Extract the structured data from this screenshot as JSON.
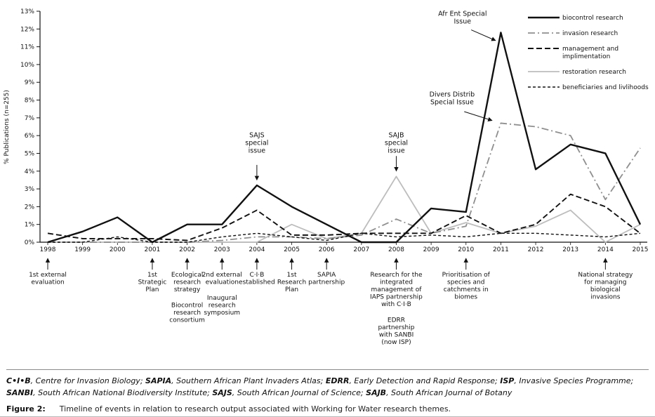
{
  "chart_data": {
    "type": "line",
    "title": "",
    "ylabel": "% Publications (n=255)",
    "ylim": [
      0,
      13
    ],
    "ytick_step": 1,
    "ytick_suffix": "%",
    "grid": false,
    "legend_position": "top-right",
    "categories": [
      1998,
      1999,
      2000,
      2001,
      2002,
      2003,
      2004,
      2005,
      2006,
      2007,
      2008,
      2009,
      2010,
      2011,
      2012,
      2013,
      2014,
      2015
    ],
    "series": [
      {
        "name": "biocontrol research",
        "style": "solid-black-thick",
        "values": [
          0,
          0.6,
          1.4,
          0,
          1.0,
          1.0,
          3.2,
          2.0,
          1.0,
          0,
          0,
          1.9,
          1.7,
          11.8,
          4.1,
          5.5,
          5.0,
          1.0
        ]
      },
      {
        "name": "invasion research",
        "style": "dashdot-gray",
        "values": [
          0,
          0,
          0,
          0,
          0,
          0.1,
          0.3,
          0.3,
          0.2,
          0.4,
          1.3,
          0.5,
          0.9,
          6.7,
          6.5,
          6.0,
          2.4,
          5.3
        ]
      },
      {
        "name": "management and implimentation",
        "style": "dashed-black",
        "values": [
          0.5,
          0.2,
          0.2,
          0.2,
          0.1,
          0.8,
          1.8,
          0.4,
          0.4,
          0.5,
          0.5,
          0.5,
          1.5,
          0.5,
          1.0,
          2.7,
          2.0,
          0.5
        ]
      },
      {
        "name": "restoration research",
        "style": "solid-gray",
        "values": [
          0,
          0,
          0,
          0,
          0,
          0,
          0,
          1.0,
          0.2,
          0.5,
          3.7,
          0.5,
          1.1,
          0.5,
          0.9,
          1.8,
          0,
          1.0
        ]
      },
      {
        "name": "beneficiaries and livlihoods",
        "style": "dotted-black",
        "values": [
          0,
          0,
          0.3,
          0,
          0,
          0.3,
          0.5,
          0.3,
          0.1,
          0.5,
          0.3,
          0.4,
          0.3,
          0.5,
          0.5,
          0.4,
          0.3,
          0.5
        ]
      }
    ],
    "legend": [
      {
        "lines": [
          "biocontrol research"
        ],
        "style": "solid-black-thick"
      },
      {
        "lines": [
          "invasion research"
        ],
        "style": "dashdot-gray"
      },
      {
        "lines": [
          "management and",
          "implimentation"
        ],
        "style": "dashed-black"
      },
      {
        "lines": [
          "restoration research"
        ],
        "style": "solid-gray"
      },
      {
        "lines": [
          "beneficiaries and livlihoods"
        ],
        "style": "dotted-black"
      }
    ],
    "annotations": [
      {
        "lines": [
          "SAJS",
          "special",
          "issue"
        ],
        "tx": 2004,
        "ty": 5.9,
        "sx": 2004,
        "sy": 4.35,
        "ax": 2004,
        "ay": 3.5
      },
      {
        "lines": [
          "SAJB",
          "special",
          "issue"
        ],
        "tx": 2008,
        "ty": 5.9,
        "sx": 2008,
        "sy": 4.85,
        "ax": 2008,
        "ay": 4.0
      },
      {
        "lines": [
          "Afr Ent Special",
          "Issue"
        ],
        "tx": 2009.9,
        "ty": 12.75,
        "sx": 2010.15,
        "sy": 11.95,
        "ax": 2010.85,
        "ay": 11.35
      },
      {
        "lines": [
          "Divers Distrib",
          "Special Issue"
        ],
        "tx": 2009.6,
        "ty": 8.2,
        "sx": 2009.95,
        "sy": 7.35,
        "ax": 2010.75,
        "ay": 6.85
      }
    ],
    "timeline_events": [
      {
        "year": 1998,
        "blocks": [
          [
            "1st external",
            "evaluation"
          ]
        ]
      },
      {
        "year": 2001,
        "blocks": [
          [
            "1st",
            "Strategic",
            "Plan"
          ]
        ]
      },
      {
        "year": 2002,
        "blocks": [
          [
            "Ecological",
            "research",
            "strategy"
          ],
          [
            "Biocontrol",
            "research",
            "consortium"
          ]
        ]
      },
      {
        "year": 2003,
        "blocks": [
          [
            "2nd external",
            "evaluation"
          ],
          [
            "Inaugural",
            "research",
            "symposium"
          ]
        ]
      },
      {
        "year": 2004,
        "blocks": [
          [
            "C·I·B",
            "established"
          ]
        ]
      },
      {
        "year": 2005,
        "blocks": [
          [
            "1st",
            "Research",
            "Plan"
          ]
        ]
      },
      {
        "year": 2006,
        "blocks": [
          [
            "SAPIA",
            "partnership"
          ]
        ]
      },
      {
        "year": 2008,
        "blocks": [
          [
            "Research for the",
            "integrated",
            "management of",
            "IAPS partnership",
            "with C·I·B"
          ],
          [
            "EDRR",
            "partnership",
            "with SANBI",
            "(now ISP)"
          ]
        ]
      },
      {
        "year": 2010,
        "blocks": [
          [
            "Prioritisation of",
            "species and",
            "catchments in",
            "biomes"
          ]
        ]
      },
      {
        "year": 2014,
        "blocks": [
          [
            "National strategy",
            "for managing",
            "biological",
            "invasions"
          ]
        ]
      }
    ]
  },
  "colors": {
    "black": "#111111",
    "gray_line": "#8f8f8f",
    "light_gray_line": "#bdbdbd"
  },
  "footnote": {
    "pairs": [
      {
        "abbr": "C•I•B",
        "definition": "Centre for Invasion Biology"
      },
      {
        "abbr": "SAPIA",
        "definition": "Southern African Plant Invaders Atlas"
      },
      {
        "abbr": "EDRR",
        "definition": "Early Detection and Rapid Response"
      },
      {
        "abbr": "ISP",
        "definition": "Invasive Species Programme"
      },
      {
        "abbr": "SANBI",
        "definition": "South African National Biodiversity Institute"
      },
      {
        "abbr": "SAJS",
        "definition": "South African Journal of Science"
      },
      {
        "abbr": "SAJB",
        "definition": "South African Journal of Botany"
      }
    ]
  },
  "caption": {
    "label": "Figure 2:",
    "text": "Timeline of events in relation to research output associated with Working for Water research themes."
  }
}
